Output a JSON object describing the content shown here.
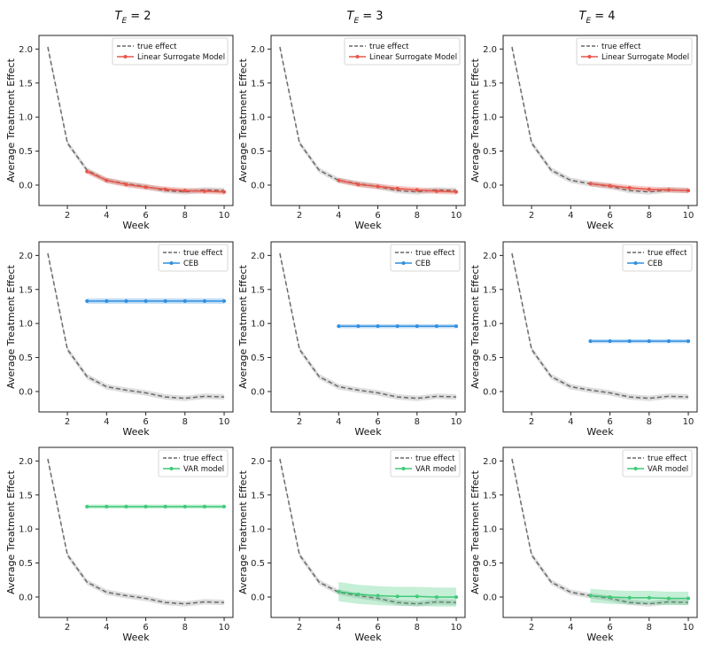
{
  "column_titles": [
    {
      "base": "T",
      "sub": "E",
      "rest": " = 2"
    },
    {
      "base": "T",
      "sub": "E",
      "rest": " = 3"
    },
    {
      "base": "T",
      "sub": "E",
      "rest": " = 4"
    }
  ],
  "colors": {
    "true_effect": "#696969",
    "true_band": "#c8c8c8",
    "linear": "#e8564a",
    "ceb": "#2f8fe0",
    "var": "#3fca78"
  },
  "chart_data": [
    {
      "type": "line",
      "row": 0,
      "col": 0,
      "xlabel": "Week",
      "ylabel": "Average Treatment Effect",
      "ylim": [
        -0.3,
        2.2
      ],
      "xticks": [
        2,
        4,
        6,
        8,
        10
      ],
      "yticks": [
        0.0,
        0.5,
        1.0,
        1.5,
        2.0
      ],
      "legend": [
        "true effect",
        "Linear Surrogate Model"
      ],
      "series": [
        {
          "name": "true effect",
          "style": "dashed",
          "x": [
            1,
            2,
            3,
            4,
            5,
            6,
            7,
            8,
            9,
            10
          ],
          "values": [
            2.03,
            0.62,
            0.22,
            0.07,
            0.02,
            -0.02,
            -0.08,
            -0.1,
            -0.07,
            -0.08
          ],
          "band": 0.04
        },
        {
          "name": "Linear Surrogate Model",
          "x": [
            3,
            4,
            5,
            6,
            7,
            8,
            9,
            10
          ],
          "values": [
            0.2,
            0.07,
            0.01,
            -0.03,
            -0.06,
            -0.08,
            -0.09,
            -0.1
          ],
          "band": 0.04
        }
      ]
    },
    {
      "type": "line",
      "row": 0,
      "col": 1,
      "xlabel": "Week",
      "ylabel": "Average Treatment Effect",
      "ylim": [
        -0.3,
        2.2
      ],
      "xticks": [
        2,
        4,
        6,
        8,
        10
      ],
      "yticks": [
        0.0,
        0.5,
        1.0,
        1.5,
        2.0
      ],
      "legend": [
        "true effect",
        "Linear Surrogate Model"
      ],
      "series": [
        {
          "name": "true effect",
          "style": "dashed",
          "x": [
            1,
            2,
            3,
            4,
            5,
            6,
            7,
            8,
            9,
            10
          ],
          "values": [
            2.03,
            0.62,
            0.22,
            0.07,
            0.02,
            -0.02,
            -0.08,
            -0.1,
            -0.07,
            -0.08
          ],
          "band": 0.04
        },
        {
          "name": "Linear Surrogate Model",
          "x": [
            4,
            5,
            6,
            7,
            8,
            9,
            10
          ],
          "values": [
            0.07,
            0.01,
            -0.02,
            -0.05,
            -0.07,
            -0.09,
            -0.1
          ],
          "band": 0.04
        }
      ]
    },
    {
      "type": "line",
      "row": 0,
      "col": 2,
      "xlabel": "Week",
      "ylabel": "Average Treatment Effect",
      "ylim": [
        -0.3,
        2.2
      ],
      "xticks": [
        2,
        4,
        6,
        8,
        10
      ],
      "yticks": [
        0.0,
        0.5,
        1.0,
        1.5,
        2.0
      ],
      "legend": [
        "true effect",
        "Linear Surrogate Model"
      ],
      "series": [
        {
          "name": "true effect",
          "style": "dashed",
          "x": [
            1,
            2,
            3,
            4,
            5,
            6,
            7,
            8,
            9,
            10
          ],
          "values": [
            2.03,
            0.62,
            0.22,
            0.07,
            0.02,
            -0.02,
            -0.08,
            -0.1,
            -0.07,
            -0.08
          ],
          "band": 0.04
        },
        {
          "name": "Linear Surrogate Model",
          "x": [
            5,
            6,
            7,
            8,
            9,
            10
          ],
          "values": [
            0.02,
            -0.01,
            -0.04,
            -0.06,
            -0.07,
            -0.08
          ],
          "band": 0.04
        }
      ]
    },
    {
      "type": "line",
      "row": 1,
      "col": 0,
      "xlabel": "Week",
      "ylabel": "Average Treatment Effect",
      "ylim": [
        -0.3,
        2.2
      ],
      "xticks": [
        2,
        4,
        6,
        8,
        10
      ],
      "yticks": [
        0.0,
        0.5,
        1.0,
        1.5,
        2.0
      ],
      "legend": [
        "true effect",
        "CEB"
      ],
      "series": [
        {
          "name": "true effect",
          "style": "dashed",
          "x": [
            1,
            2,
            3,
            4,
            5,
            6,
            7,
            8,
            9,
            10
          ],
          "values": [
            2.03,
            0.62,
            0.22,
            0.07,
            0.02,
            -0.02,
            -0.08,
            -0.1,
            -0.07,
            -0.08
          ],
          "band": 0.04
        },
        {
          "name": "CEB",
          "x": [
            3,
            4,
            5,
            6,
            7,
            8,
            9,
            10
          ],
          "values": [
            1.33,
            1.33,
            1.33,
            1.33,
            1.33,
            1.33,
            1.33,
            1.33
          ],
          "band": 0.04
        }
      ]
    },
    {
      "type": "line",
      "row": 1,
      "col": 1,
      "xlabel": "Week",
      "ylabel": "Average Treatment Effect",
      "ylim": [
        -0.3,
        2.2
      ],
      "xticks": [
        2,
        4,
        6,
        8,
        10
      ],
      "yticks": [
        0.0,
        0.5,
        1.0,
        1.5,
        2.0
      ],
      "legend": [
        "true effect",
        "CEB"
      ],
      "series": [
        {
          "name": "true effect",
          "style": "dashed",
          "x": [
            1,
            2,
            3,
            4,
            5,
            6,
            7,
            8,
            9,
            10
          ],
          "values": [
            2.03,
            0.62,
            0.22,
            0.07,
            0.02,
            -0.02,
            -0.08,
            -0.1,
            -0.07,
            -0.08
          ],
          "band": 0.04
        },
        {
          "name": "CEB",
          "x": [
            4,
            5,
            6,
            7,
            8,
            9,
            10
          ],
          "values": [
            0.96,
            0.96,
            0.96,
            0.96,
            0.96,
            0.96,
            0.96
          ],
          "band": 0.03
        }
      ]
    },
    {
      "type": "line",
      "row": 1,
      "col": 2,
      "xlabel": "Week",
      "ylabel": "Average Treatment Effect",
      "ylim": [
        -0.3,
        2.2
      ],
      "xticks": [
        2,
        4,
        6,
        8,
        10
      ],
      "yticks": [
        0.0,
        0.5,
        1.0,
        1.5,
        2.0
      ],
      "legend": [
        "true effect",
        "CEB"
      ],
      "series": [
        {
          "name": "true effect",
          "style": "dashed",
          "x": [
            1,
            2,
            3,
            4,
            5,
            6,
            7,
            8,
            9,
            10
          ],
          "values": [
            2.03,
            0.62,
            0.22,
            0.07,
            0.02,
            -0.02,
            -0.08,
            -0.1,
            -0.07,
            -0.08
          ],
          "band": 0.04
        },
        {
          "name": "CEB",
          "x": [
            5,
            6,
            7,
            8,
            9,
            10
          ],
          "values": [
            0.74,
            0.74,
            0.74,
            0.74,
            0.74,
            0.74
          ],
          "band": 0.03
        }
      ]
    },
    {
      "type": "line",
      "row": 2,
      "col": 0,
      "xlabel": "Week",
      "ylabel": "Average Treatment Effect",
      "ylim": [
        -0.3,
        2.2
      ],
      "xticks": [
        2,
        4,
        6,
        8,
        10
      ],
      "yticks": [
        0.0,
        0.5,
        1.0,
        1.5,
        2.0
      ],
      "legend": [
        "true effect",
        "VAR model"
      ],
      "series": [
        {
          "name": "true effect",
          "style": "dashed",
          "x": [
            1,
            2,
            3,
            4,
            5,
            6,
            7,
            8,
            9,
            10
          ],
          "values": [
            2.03,
            0.62,
            0.22,
            0.07,
            0.02,
            -0.02,
            -0.08,
            -0.1,
            -0.07,
            -0.08
          ],
          "band": 0.04
        },
        {
          "name": "VAR model",
          "x": [
            3,
            4,
            5,
            6,
            7,
            8,
            9,
            10
          ],
          "values": [
            1.33,
            1.33,
            1.33,
            1.33,
            1.33,
            1.33,
            1.33,
            1.33
          ],
          "band": 0.03
        }
      ]
    },
    {
      "type": "line",
      "row": 2,
      "col": 1,
      "xlabel": "Week",
      "ylabel": "Average Treatment Effect",
      "ylim": [
        -0.3,
        2.2
      ],
      "xticks": [
        2,
        4,
        6,
        8,
        10
      ],
      "yticks": [
        0.0,
        0.5,
        1.0,
        1.5,
        2.0
      ],
      "legend": [
        "true effect",
        "VAR model"
      ],
      "series": [
        {
          "name": "true effect",
          "style": "dashed",
          "x": [
            1,
            2,
            3,
            4,
            5,
            6,
            7,
            8,
            9,
            10
          ],
          "values": [
            2.03,
            0.62,
            0.22,
            0.07,
            0.02,
            -0.02,
            -0.08,
            -0.1,
            -0.07,
            -0.08
          ],
          "band": 0.04
        },
        {
          "name": "VAR model",
          "x": [
            4,
            5,
            6,
            7,
            8,
            9,
            10
          ],
          "values": [
            0.08,
            0.04,
            0.02,
            0.01,
            0.01,
            0.0,
            0.0
          ],
          "band": 0.14
        }
      ]
    },
    {
      "type": "line",
      "row": 2,
      "col": 2,
      "xlabel": "Week",
      "ylabel": "Average Treatment Effect",
      "ylim": [
        -0.3,
        2.2
      ],
      "xticks": [
        2,
        4,
        6,
        8,
        10
      ],
      "yticks": [
        0.0,
        0.5,
        1.0,
        1.5,
        2.0
      ],
      "legend": [
        "true effect",
        "VAR model"
      ],
      "series": [
        {
          "name": "true effect",
          "style": "dashed",
          "x": [
            1,
            2,
            3,
            4,
            5,
            6,
            7,
            8,
            9,
            10
          ],
          "values": [
            2.03,
            0.62,
            0.22,
            0.07,
            0.02,
            -0.02,
            -0.08,
            -0.1,
            -0.07,
            -0.08
          ],
          "band": 0.04
        },
        {
          "name": "VAR model",
          "x": [
            5,
            6,
            7,
            8,
            9,
            10
          ],
          "values": [
            0.02,
            0.0,
            -0.01,
            -0.01,
            -0.02,
            -0.02
          ],
          "band": 0.1
        }
      ]
    }
  ]
}
